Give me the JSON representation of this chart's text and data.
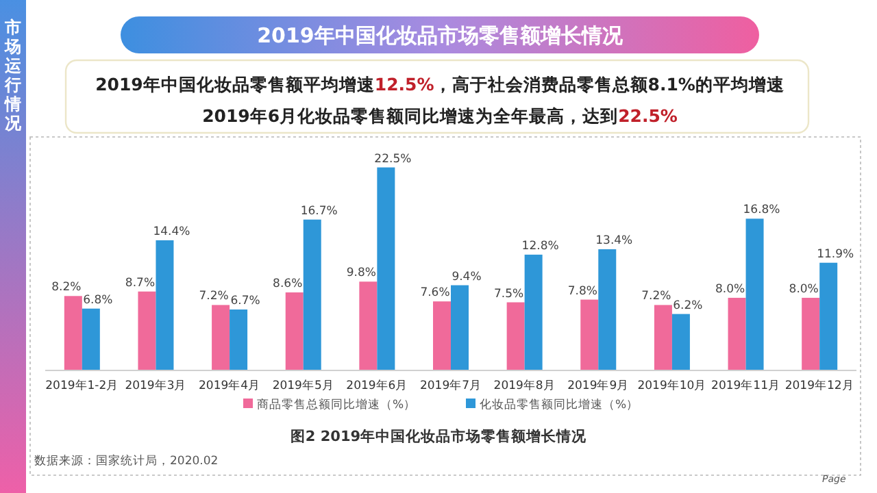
{
  "chart_data": {
    "type": "bar",
    "title": "2019年中国化妆品市场零售额增长情况",
    "categories": [
      "2019年1-2月",
      "2019年3月",
      "2019年4月",
      "2019年5月",
      "2019年6月",
      "2019年7月",
      "2019年8月",
      "2019年9月",
      "2019年10月",
      "2019年11月",
      "2019年12月"
    ],
    "series": [
      {
        "name": "商品零售总额同比增速（%）",
        "color": "#f06a9a",
        "values": [
          8.2,
          8.7,
          7.2,
          8.6,
          9.8,
          7.6,
          7.5,
          7.8,
          7.2,
          8.0,
          8.0
        ],
        "value_labels": [
          "8.2%",
          "8.7%",
          "7.2%",
          "8.6%",
          "9.8%",
          "7.6%",
          "7.5%",
          "7.8%",
          "7.2%",
          "8.0%",
          "8.0%"
        ]
      },
      {
        "name": "化妆品零售额同比增速（%）",
        "color": "#2e97d8",
        "values": [
          6.8,
          14.4,
          6.7,
          16.7,
          22.5,
          9.4,
          12.8,
          13.4,
          6.2,
          16.8,
          11.9
        ],
        "value_labels": [
          "6.8%",
          "14.4%",
          "6.7%",
          "16.7%",
          "22.5%",
          "9.4%",
          "12.8%",
          "13.4%",
          "6.2%",
          "16.8%",
          "11.9%"
        ]
      }
    ],
    "tick_labels": "x",
    "legend": "bottom",
    "annotations": [
      "2019年中国化妆品零售额平均增速12.5%，高于社会消费品零售总额8.1%的平均增速",
      "2019年6月化妆品零售额同比增速为全年最高，达到22.5%",
      "市场运行情况",
      "图2 2019年中国化妆品市场零售额增长情况",
      "数据来源：国家统计局，2020.02",
      "Page"
    ]
  }
}
